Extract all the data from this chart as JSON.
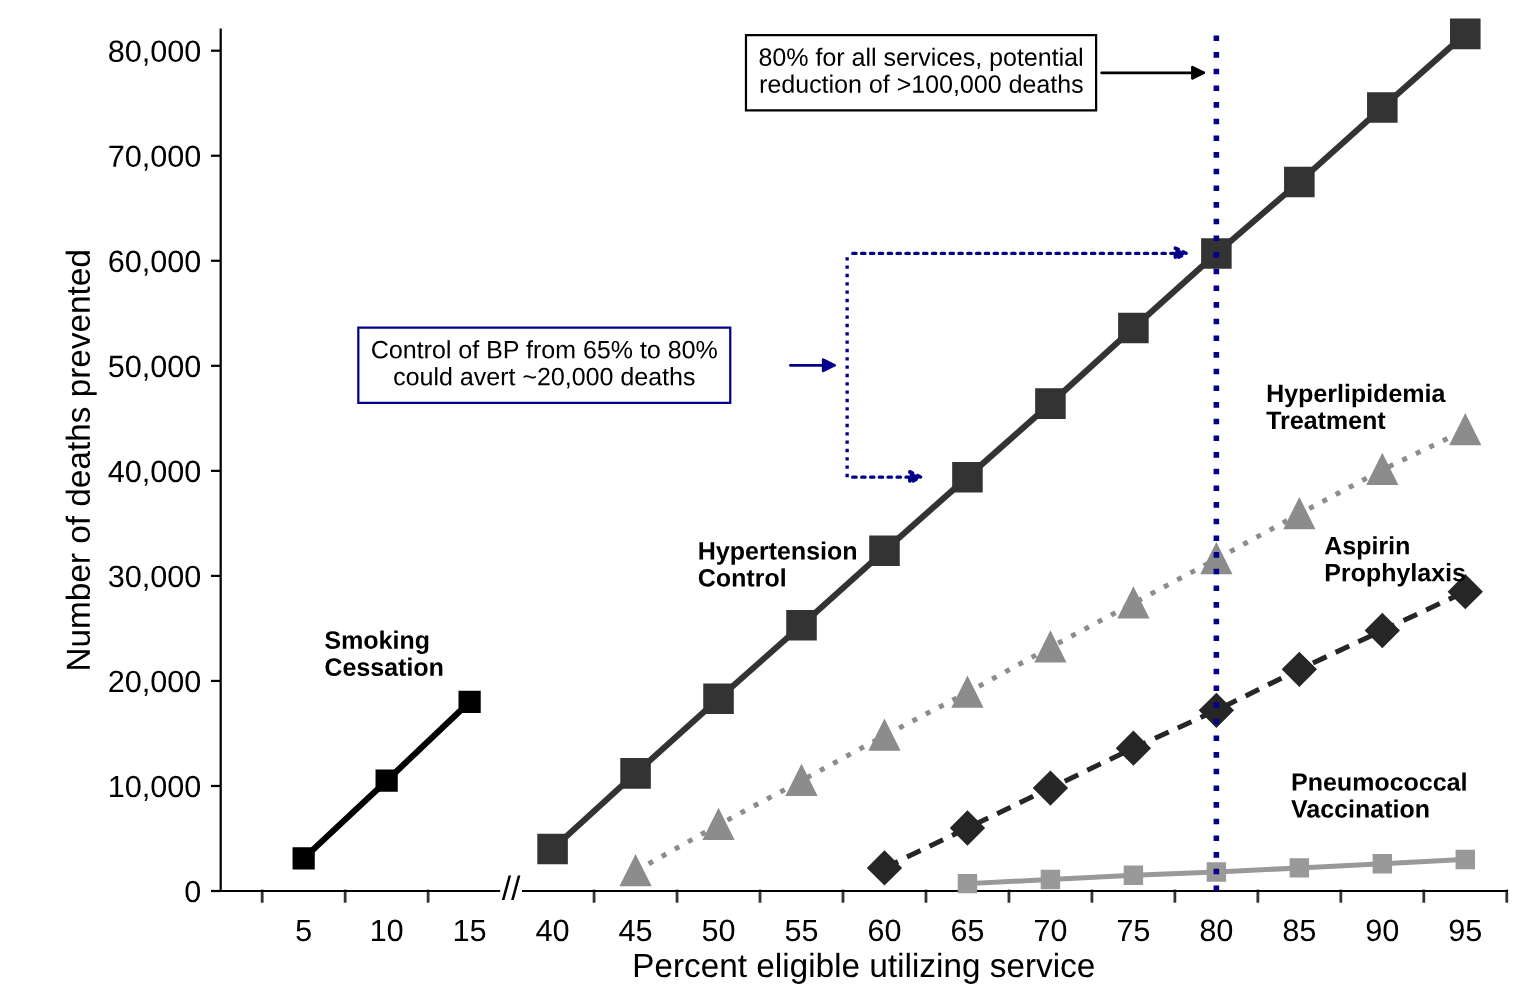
{
  "chart_data": {
    "type": "line",
    "xlabel": "Percent eligible utilizing service",
    "ylabel": "Number of deaths prevented",
    "categories": [
      "5",
      "10",
      "15",
      "40",
      "45",
      "50",
      "55",
      "60",
      "65",
      "70",
      "75",
      "80",
      "85",
      "90",
      "95"
    ],
    "series": [
      {
        "name": "Smoking Cessation",
        "color": "#000000",
        "marker": "square",
        "line_style": "solid",
        "values": [
          3100,
          10500,
          18000,
          null,
          null,
          null,
          null,
          null,
          null,
          null,
          null,
          null,
          null,
          null,
          null
        ]
      },
      {
        "name": "Hypertension Control",
        "color": "#333333",
        "marker": "square",
        "line_style": "solid",
        "values": [
          null,
          null,
          null,
          4000,
          11200,
          18300,
          25300,
          32400,
          39400,
          46400,
          53600,
          60700,
          67500,
          74600,
          81600
        ]
      },
      {
        "name": "Hyperlipidemia Treatment",
        "color": "#8c8c8c",
        "marker": "triangle",
        "line_style": "dotted",
        "values": [
          null,
          null,
          null,
          null,
          1900,
          6300,
          10500,
          14800,
          18900,
          23200,
          27400,
          31600,
          35900,
          40100,
          43900
        ]
      },
      {
        "name": "Aspirin Prophylaxis",
        "color": "#262626",
        "marker": "diamond",
        "line_style": "dashed",
        "values": [
          null,
          null,
          null,
          null,
          null,
          null,
          null,
          2200,
          6000,
          9800,
          13600,
          17200,
          21100,
          24800,
          28500
        ]
      },
      {
        "name": "Pneumococcal Vaccination",
        "color": "#999999",
        "marker": "square",
        "line_style": "solid",
        "values": [
          null,
          null,
          null,
          null,
          null,
          null,
          null,
          null,
          700,
          1100,
          1500,
          1800,
          2200,
          2600,
          3000
        ]
      }
    ],
    "ylim": [
      0,
      82000
    ],
    "yticks": [
      {
        "value": 0,
        "label": "0"
      },
      {
        "value": 10000,
        "label": "10,000"
      },
      {
        "value": 20000,
        "label": "20,000"
      },
      {
        "value": 30000,
        "label": "30,000"
      },
      {
        "value": 40000,
        "label": "40,000"
      },
      {
        "value": 50000,
        "label": "50,000"
      },
      {
        "value": 60000,
        "label": "60,000"
      },
      {
        "value": 70000,
        "label": "70,000"
      },
      {
        "value": 80000,
        "label": "80,000"
      }
    ],
    "ref_lines": [
      {
        "axis": "x",
        "value": "80",
        "color": "#00008b",
        "line_style": "dotted"
      }
    ],
    "annotations": [
      "80% for all services, potential\nreduction of >100,000 deaths",
      "Control of BP from 65% to 80%\ncould avert ~20,000 deaths",
      "//"
    ],
    "grid": false,
    "legend": false
  }
}
